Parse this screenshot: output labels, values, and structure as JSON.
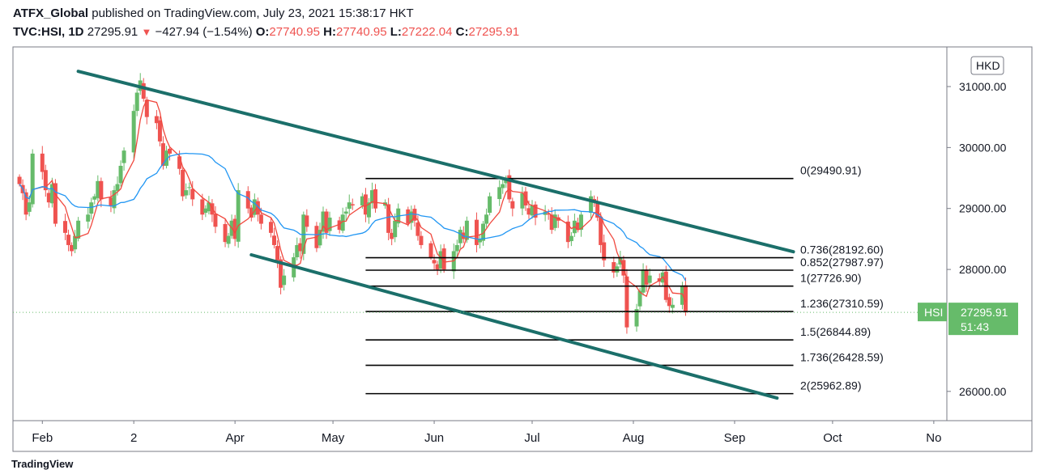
{
  "header": {
    "line1": {
      "publisher": "ATFX_Global",
      "text": "published on TradingView.com, July 23, 2021 15:38:17 HKT"
    },
    "line2": {
      "symbol": "TVC:HSI, 1D",
      "last": "27295.91",
      "change_arrow": "▼",
      "change": "−427.94 (−1.54%)",
      "o_label": "O:",
      "o": "27740.95",
      "h_label": "H:",
      "h": "27740.95",
      "l_label": "L:",
      "l": "27222.04",
      "c_label": "C:",
      "c": "27295.91"
    }
  },
  "footer": {
    "text": "TradingView"
  },
  "colors": {
    "up": "#66bb6a",
    "down": "#ef5350",
    "channel": "#1b6f6a",
    "ma_fast": "#f0483e",
    "ma_slow": "#2196f3",
    "fib": "#000000",
    "price_tag": "#66bb6a"
  },
  "chart_data": {
    "type": "candlestick",
    "currency": "HKD",
    "symbol_tag": "HSI",
    "price_tag": {
      "value": "27295.91",
      "countdown": "51:43"
    },
    "y_range": [
      25520,
      31650
    ],
    "y_ticks": [
      "31000.00",
      "30000.00",
      "29000.00",
      "28000.00",
      "26000.00"
    ],
    "x_range": [
      "2021-01-23",
      "2021-11-05"
    ],
    "x_ticks": [
      {
        "label": "Feb",
        "date": "2021-02-01"
      },
      {
        "label": "2",
        "date": "2021-03-01"
      },
      {
        "label": "Apr",
        "date": "2021-04-01"
      },
      {
        "label": "May",
        "date": "2021-05-01"
      },
      {
        "label": "Jun",
        "date": "2021-06-01"
      },
      {
        "label": "Jul",
        "date": "2021-07-01"
      },
      {
        "label": "Aug",
        "date": "2021-08-01"
      },
      {
        "label": "Sep",
        "date": "2021-09-01"
      },
      {
        "label": "Oct",
        "date": "2021-10-01"
      },
      {
        "label": "No",
        "date": "2021-11-01"
      }
    ],
    "close": [
      29400,
      29250,
      28900,
      29100,
      29900,
      29600,
      29300,
      29100,
      29400,
      28750,
      28600,
      28400,
      28300,
      28550,
      28800,
      28900,
      29100,
      29200,
      29450,
      29150,
      29050,
      29300,
      29400,
      29700,
      29950,
      30600,
      30900,
      31100,
      30800,
      30500,
      30400,
      30100,
      29700,
      29950,
      29900,
      29650,
      29200,
      29300,
      29350,
      29150,
      28900,
      29000,
      29100,
      28900,
      28700,
      28450,
      28550,
      28800,
      28500,
      29300,
      29000,
      28850,
      29150,
      28900,
      28750,
      28600,
      28400,
      28150,
      27700,
      27900,
      28200,
      28400,
      28300,
      28900,
      28700,
      28350,
      28650,
      28950,
      28600,
      28850,
      28650,
      28900,
      28950,
      29100,
      29050,
      29200,
      28900,
      29100,
      29300,
      29000,
      29100,
      28600,
      28500,
      28800,
      29000,
      28750,
      28950,
      28800,
      28550,
      28400,
      28200,
      28100,
      28000,
      28300,
      28000,
      28300,
      28400,
      28650,
      28500,
      28800,
      28400,
      28500,
      28750,
      28900,
      29200,
      29350,
      29400,
      29500,
      29150,
      29000,
      29250,
      29050,
      28900,
      29050,
      28850,
      28950,
      28900,
      28650,
      28900,
      28800,
      28450,
      28550,
      28800,
      28650,
      28900,
      29200,
      29100,
      28850,
      28400,
      28150,
      27950,
      28050,
      28200,
      27900,
      27050,
      27350,
      27650,
      28000,
      27750,
      27900,
      27800,
      27950,
      27500,
      27400,
      27420,
      27723,
      27296
    ],
    "series": [
      {
        "name": "MA (fast)",
        "values_from": "close",
        "period": 5
      },
      {
        "name": "MA (slow)",
        "values_from": "close",
        "period": 20
      }
    ],
    "channel_upper": {
      "start": [
        "2021-02-12",
        31250
      ],
      "end": [
        "2021-09-19",
        28290
      ]
    },
    "channel_lower": {
      "start": [
        "2021-04-06",
        28240
      ],
      "end": [
        "2021-09-14",
        25890
      ]
    },
    "fib_levels": [
      {
        "label": "0(29490.91)",
        "value": 29490.91
      },
      {
        "label": "0.736(28192.60)",
        "value": 28192.6
      },
      {
        "label": "0.852(27987.97)",
        "value": 27987.97
      },
      {
        "label": "1(27726.90)",
        "value": 27726.9
      },
      {
        "label": "1.236(27310.59)",
        "value": 27310.59
      },
      {
        "label": "1.5(26844.89)",
        "value": 26844.89
      },
      {
        "label": "1.736(26428.59)",
        "value": 26428.59
      },
      {
        "label": "2(25962.89)",
        "value": 25962.89
      }
    ],
    "fib_x_range": [
      "2021-05-11",
      "2021-09-19"
    ]
  }
}
